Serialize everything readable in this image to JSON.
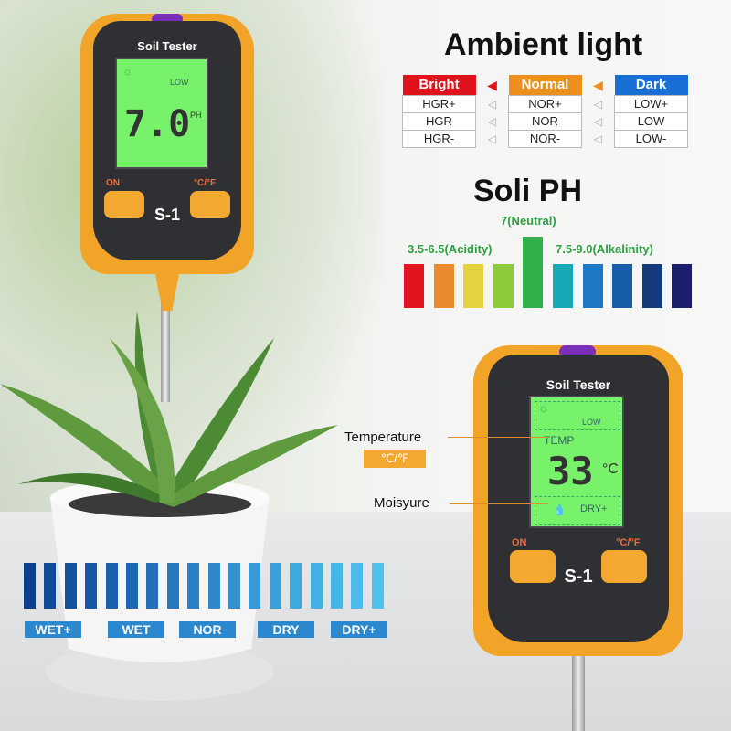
{
  "device_top": {
    "brand": "Soil Tester",
    "model": "S-1",
    "on_label": "ON",
    "unit_label": "°C/°F",
    "lcd_light": "LOW",
    "lcd_value": "7.0",
    "lcd_unit": "PH"
  },
  "device_bottom": {
    "brand": "Soil Tester",
    "model": "S-1",
    "on_label": "ON",
    "unit_label": "°C/°F",
    "lcd_light": "LOW",
    "lcd_temp_label": "TEMP",
    "lcd_value": "33",
    "lcd_unit": "°C",
    "lcd_moisture": "DRY+"
  },
  "ambient": {
    "title": "Ambient light",
    "columns": [
      {
        "header": "Bright",
        "color": "#e0121b",
        "rows": [
          "HGR+",
          "HGR",
          "HGR-"
        ]
      },
      {
        "header": "Normal",
        "color": "#ec8f1d",
        "rows": [
          "NOR+",
          "NOR",
          "NOR-"
        ]
      },
      {
        "header": "Dark",
        "color": "#1a6fd6",
        "rows": [
          "LOW+",
          "LOW",
          "LOW-"
        ]
      }
    ]
  },
  "ph": {
    "title": "Soli PH",
    "neutral": "7(Neutral)",
    "acid": "3.5-6.5(Acidity)",
    "alkaline": "7.5-9.0(Alkalinity)",
    "colors": [
      "#e2141f",
      "#e88a2d",
      "#e6d13f",
      "#8ccb3c",
      "#2fb04a",
      "#17a8b8",
      "#1f78c4",
      "#175ea8",
      "#153b7c",
      "#1c1f6e"
    ]
  },
  "callouts": {
    "temperature": "Temperature",
    "temp_unit": "℃/℉",
    "moisture": "Moisyure"
  },
  "moisture": {
    "labels": [
      "WET+",
      "WET",
      "NOR",
      "DRY",
      "DRY+"
    ],
    "colors": [
      "#0d3f8c",
      "#0f4c98",
      "#1254a0",
      "#1658a6",
      "#1a62ae",
      "#1d68b4",
      "#2170b9",
      "#2678bf",
      "#2a80c5",
      "#2e88cb",
      "#3290d0",
      "#3799d6",
      "#3ba0da",
      "#3fa8df",
      "#43b0e3",
      "#47b6e6",
      "#4bbbe9",
      "#50c0ec"
    ]
  }
}
